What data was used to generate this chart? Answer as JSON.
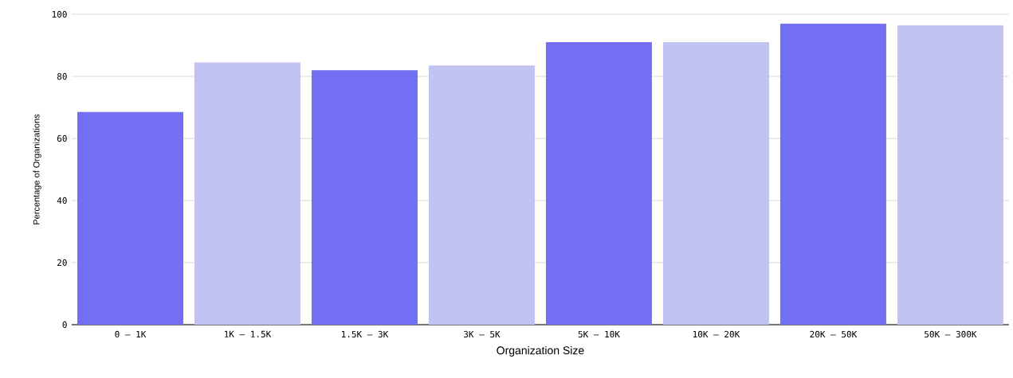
{
  "chart_data": {
    "type": "bar",
    "xlabel": "Organization Size",
    "ylabel": "Percentage of Organizations",
    "categories": [
      "0 – 1K",
      "1K – 1.5K",
      "1.5K – 3K",
      "3K – 5K",
      "5K – 10K",
      "10K – 20K",
      "20K – 50K",
      "50K – 300K"
    ],
    "values": [
      68.5,
      84.5,
      82,
      83.5,
      91,
      91,
      97,
      96.5
    ],
    "colors": [
      "#736ff3",
      "#c1c3f0",
      "#736ff3",
      "#c1c3f0",
      "#736ff3",
      "#c1c3f0",
      "#736ff3",
      "#c1c3f0"
    ],
    "ylim": [
      0,
      100
    ],
    "yticks": [
      0,
      20,
      40,
      60,
      80,
      100
    ],
    "grid": "y"
  }
}
